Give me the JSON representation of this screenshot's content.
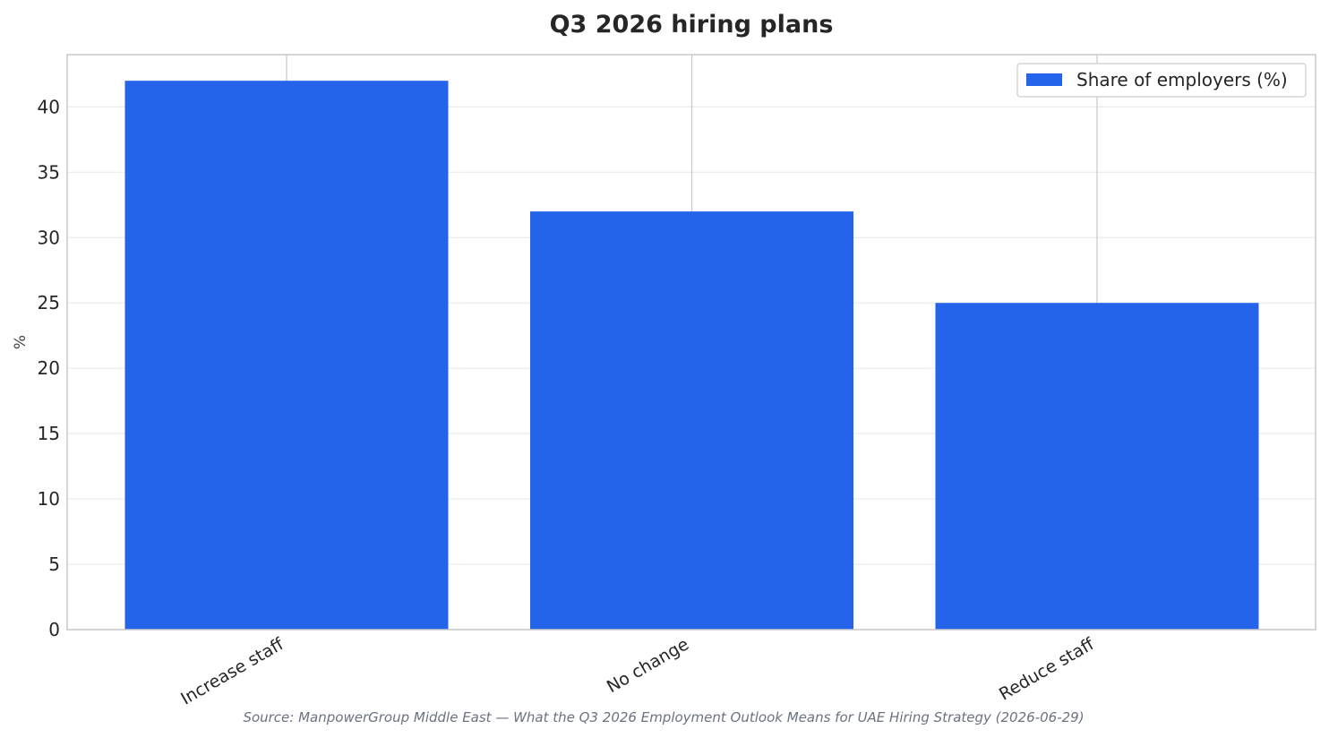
{
  "chart_data": {
    "type": "bar",
    "title": "Q3 2026 hiring plans",
    "xlabel": "",
    "ylabel": "%",
    "categories": [
      "Increase staff",
      "No change",
      "Reduce staff"
    ],
    "series": [
      {
        "name": "Share of employers (%)",
        "values": [
          42,
          32,
          25
        ],
        "color": "#2563eb"
      }
    ],
    "ylim": [
      0,
      44
    ],
    "yticks": [
      0,
      5,
      10,
      15,
      20,
      25,
      30,
      35,
      40
    ],
    "grid": true,
    "legend_position": "top-right",
    "source": "Source: ManpowerGroup Middle East — What the Q3 2026 Employment Outlook Means for UAE Hiring Strategy (2026-06-29)"
  }
}
